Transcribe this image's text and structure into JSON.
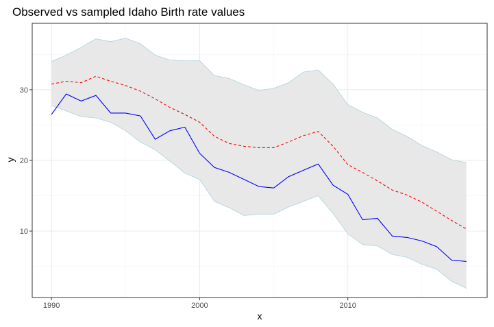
{
  "chart_data": {
    "type": "line",
    "title": "Observed vs sampled Idaho Birth rate values",
    "xlabel": "x",
    "ylabel": "y",
    "xlim": [
      1988.7,
      2019.4
    ],
    "ylim": [
      0.6,
      39.4
    ],
    "x_ticks": [
      1990,
      2000,
      2010
    ],
    "y_ticks": [
      10,
      20,
      30
    ],
    "x_tick_labels": [
      "1990",
      "2000",
      "2010"
    ],
    "y_tick_labels": [
      "10",
      "20",
      "30"
    ],
    "grid": true,
    "legend": "none",
    "colors": {
      "observed": "#0000ff",
      "sampled_mean": "#ff0000",
      "band_fill": "#e8e8e8",
      "band_edge": "#a9d3dc",
      "grid_major": "#ebebeb",
      "grid_minor": "#f4f4f4",
      "panel_border": "#333333"
    },
    "x": [
      1990,
      1991,
      1992,
      1993,
      1994,
      1995,
      1996,
      1997,
      1998,
      1999,
      2000,
      2001,
      2002,
      2003,
      2004,
      2005,
      2006,
      2007,
      2008,
      2009,
      2010,
      2011,
      2012,
      2013,
      2014,
      2015,
      2016,
      2017,
      2018
    ],
    "series": [
      {
        "role": "band",
        "lower": [
          27.8,
          27.0,
          26.2,
          26.0,
          25.4,
          24.2,
          22.6,
          21.5,
          19.9,
          18.2,
          17.3,
          14.2,
          13.3,
          12.2,
          12.4,
          12.4,
          13.4,
          14.2,
          15.0,
          12.5,
          9.6,
          8.1,
          7.9,
          6.7,
          6.3,
          5.3,
          4.6,
          2.9,
          1.9
        ],
        "upper": [
          34.0,
          34.9,
          36.0,
          37.2,
          36.8,
          37.3,
          36.5,
          34.9,
          34.2,
          34.1,
          34.1,
          32.0,
          31.6,
          30.7,
          29.9,
          30.2,
          31.0,
          32.5,
          32.8,
          30.8,
          27.9,
          26.8,
          26.0,
          24.4,
          23.4,
          22.1,
          21.2,
          20.1,
          19.7
        ]
      },
      {
        "role": "sampled-mean",
        "style": "dashed",
        "values": [
          30.8,
          31.2,
          31.0,
          31.9,
          31.2,
          30.6,
          29.8,
          28.7,
          27.5,
          26.5,
          25.4,
          23.4,
          22.4,
          22.0,
          21.8,
          21.8,
          22.6,
          23.5,
          24.1,
          22.0,
          19.4,
          18.3,
          17.1,
          15.8,
          15.1,
          14.1,
          12.8,
          11.5,
          10.3
        ]
      },
      {
        "role": "observed",
        "style": "solid",
        "values": [
          26.5,
          29.4,
          28.4,
          29.2,
          26.7,
          26.7,
          26.3,
          23.0,
          24.2,
          24.7,
          21.0,
          19.0,
          18.3,
          17.3,
          16.3,
          16.1,
          17.7,
          18.6,
          19.5,
          16.5,
          15.2,
          11.6,
          11.8,
          9.3,
          9.1,
          8.6,
          7.8,
          5.9,
          5.7
        ]
      }
    ]
  }
}
